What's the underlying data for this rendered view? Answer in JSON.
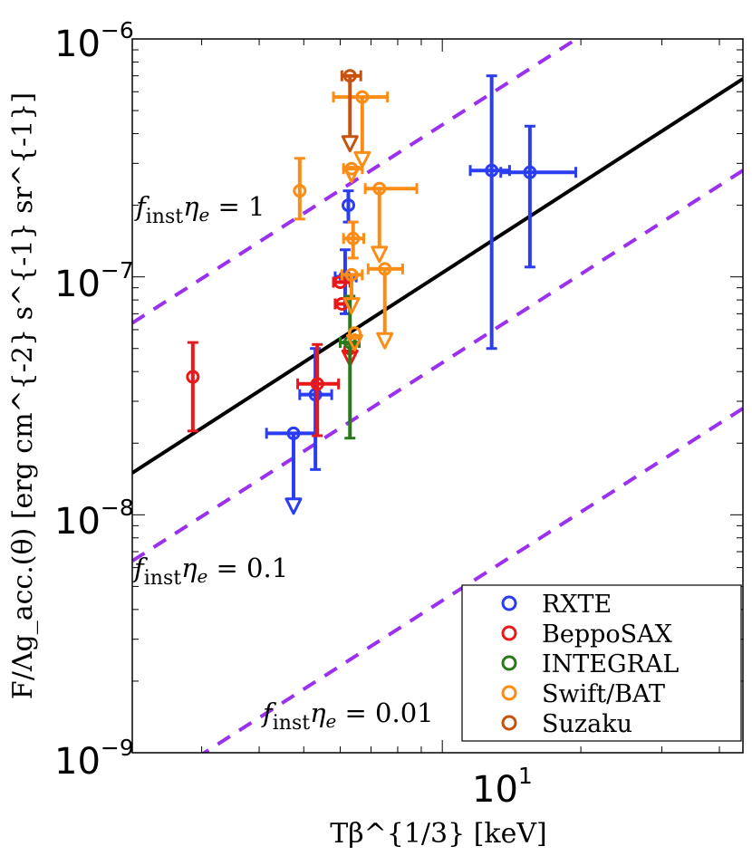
{
  "chart_data": {
    "type": "scatter",
    "title": "",
    "xlabel": "Tβ^{1/3} [keV]",
    "ylabel": "F/Λg_acc.(θ) [erg cm^{-2} s^{-1} sr^{-1}]",
    "xscale": "log",
    "yscale": "log",
    "xlim": [
      2.12,
      45
    ],
    "ylim": [
      1e-09,
      1e-06
    ],
    "x_tick_labels": [
      {
        "value": 10,
        "base": "10",
        "exp": "1"
      }
    ],
    "y_tick_labels": [
      {
        "value": 1e-06,
        "base": "10",
        "exp": "−6"
      },
      {
        "value": 1e-07,
        "base": "10",
        "exp": "−7"
      },
      {
        "value": 1e-08,
        "base": "10",
        "exp": "−8"
      },
      {
        "value": 1e-09,
        "base": "10",
        "exp": "−9"
      }
    ],
    "legend": {
      "position": "bottom-right",
      "entries": [
        "RXTE",
        "BeppoSAX",
        "INTEGRAL",
        "Swift/BAT",
        "Suzaku"
      ]
    },
    "colors": {
      "RXTE": "#2b3df2",
      "BeppoSAX": "#e8191b",
      "INTEGRAL": "#2a7a1c",
      "Swift/BAT": "#fb8c16",
      "Suzaku": "#c7520e",
      "fit": "#000000",
      "dashed": "#9b30ef"
    },
    "fit_line": {
      "points": [
        [
          2.12,
          1.5e-08
        ],
        [
          45,
          6.8e-07
        ]
      ]
    },
    "dashed_lines": [
      {
        "label": "f_inst η_e = 1",
        "text_main": "f",
        "text_sub": "inst",
        "text_rest": "η",
        "text_rest_sub": "e",
        "text_value": " = 1",
        "points": [
          [
            2.12,
            6.4e-08
          ],
          [
            45,
            2.8e-06
          ]
        ]
      },
      {
        "label": "f_inst η_e = 0.1",
        "text_main": "f",
        "text_sub": "inst",
        "text_rest": "η",
        "text_rest_sub": "e",
        "text_value": " = 0.1",
        "points": [
          [
            2.12,
            6.4e-09
          ],
          [
            45,
            2.8e-07
          ]
        ]
      },
      {
        "label": "f_inst η_e = 0.01",
        "text_main": "f",
        "text_sub": "inst",
        "text_rest": "η",
        "text_rest_sub": "e",
        "text_value": " = 0.01",
        "points": [
          [
            2.12,
            6.4e-10
          ],
          [
            45,
            2.8e-08
          ]
        ]
      }
    ],
    "series": [
      {
        "name": "RXTE",
        "points": [
          {
            "x": 4.75,
            "y": 2.2e-08,
            "xerr": [
              4.15,
              5.3
            ],
            "upper_limit_to": 1.05e-08
          },
          {
            "x": 5.3,
            "y": 3.2e-08,
            "xerr": [
              4.9,
              5.75
            ],
            "yerr": [
              1.55e-08,
              5e-08
            ]
          },
          {
            "x": 6.15,
            "y": 1e-07,
            "xerr": [
              5.85,
              6.5
            ],
            "yerr": [
              7e-08,
              1.3e-07
            ]
          },
          {
            "x": 6.25,
            "y": 2e-07,
            "yerr": [
              1.7e-07,
              2.3e-07
            ]
          },
          {
            "x": 12.8,
            "y": 2.8e-07,
            "xerr": [
              11.5,
              14.0
            ],
            "yerr": [
              5e-08,
              7e-07
            ]
          },
          {
            "x": 15.5,
            "y": 2.75e-07,
            "xerr": [
              13.4,
              19.5
            ],
            "yerr": [
              1.1e-07,
              4.3e-07
            ]
          }
        ]
      },
      {
        "name": "BeppoSAX",
        "points": [
          {
            "x": 2.87,
            "y": 3.8e-08,
            "yerr": [
              2.25e-08,
              5.3e-08
            ]
          },
          {
            "x": 5.35,
            "y": 3.55e-08,
            "xerr": [
              4.85,
              5.95
            ],
            "yerr": [
              2.15e-08,
              5.2e-08
            ]
          },
          {
            "x": 6.0,
            "y": 9.5e-08,
            "xerr": [
              5.8,
              6.3
            ]
          },
          {
            "x": 6.05,
            "y": 7.7e-08,
            "xerr": [
              5.85,
              6.3
            ]
          },
          {
            "x": 6.3,
            "y": 5e-08,
            "upper_limit_to": 4.4e-08
          }
        ]
      },
      {
        "name": "INTEGRAL",
        "points": [
          {
            "x": 6.3,
            "y": 5.3e-08,
            "xerr": [
              6.0,
              6.6
            ],
            "yerr": [
              2.1e-08,
              8.3e-08
            ]
          }
        ]
      },
      {
        "name": "Swift/BAT",
        "points": [
          {
            "x": 4.9,
            "y": 2.3e-07,
            "yerr": [
              1.75e-07,
              3.15e-07
            ]
          },
          {
            "x": 6.7,
            "y": 5.7e-07,
            "xerr": [
              5.8,
              7.6
            ],
            "upper_limit_to": 3e-07
          },
          {
            "x": 6.35,
            "y": 2.85e-07,
            "xerr": [
              6.1,
              6.7
            ],
            "upper_limit_to": 2.6e-07
          },
          {
            "x": 7.3,
            "y": 2.35e-07,
            "xerr": [
              6.8,
              8.8
            ],
            "upper_limit_to": 1.2e-07
          },
          {
            "x": 6.4,
            "y": 1.45e-07,
            "xerr": [
              6.1,
              6.75
            ],
            "yerr": [
              1.2e-07,
              1.7e-07
            ]
          },
          {
            "x": 7.5,
            "y": 1.08e-07,
            "xerr": [
              6.9,
              8.2
            ],
            "upper_limit_to": 5.2e-08
          },
          {
            "x": 6.35,
            "y": 1.02e-07,
            "xerr": [
              6.05,
              6.7
            ],
            "upper_limit_to": 7.3e-08
          },
          {
            "x": 6.45,
            "y": 5.8e-08,
            "upper_limit_to": 5.1e-08
          }
        ]
      },
      {
        "name": "Suzaku",
        "points": [
          {
            "x": 6.3,
            "y": 7e-07,
            "xerr": [
              6.05,
              6.65
            ],
            "upper_limit_to": 3.5e-07
          }
        ]
      }
    ]
  }
}
